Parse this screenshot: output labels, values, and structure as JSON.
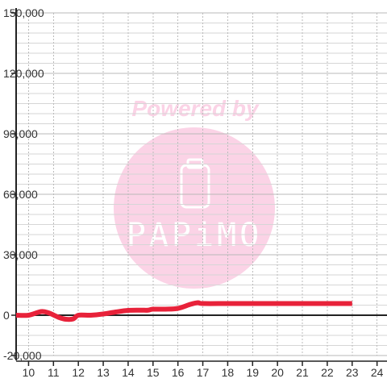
{
  "chart_data": {
    "type": "line",
    "title": "",
    "xlabel": "",
    "ylabel": "",
    "xlim": [
      9.5,
      24.4
    ],
    "ylim": [
      -20000,
      150000
    ],
    "x_ticks": [
      10,
      11,
      12,
      13,
      14,
      15,
      16,
      17,
      18,
      19,
      20,
      21,
      22,
      23,
      24
    ],
    "x_tick_labels": [
      "10",
      "11",
      "12",
      "13",
      "14",
      "15",
      "16",
      "17",
      "18",
      "19",
      "20",
      "21",
      "22",
      "23",
      "24"
    ],
    "y_ticks": [
      -20000,
      0,
      30000,
      60000,
      90000,
      120000,
      150000
    ],
    "y_tick_labels": [
      "-20,000",
      "0",
      "30,000",
      "60,000",
      "90,000",
      "120,000",
      "150,000"
    ],
    "grid": true,
    "series": [
      {
        "color": "#e8223a",
        "x": [
          9.5,
          10.0,
          10.5,
          10.8,
          11.2,
          11.5,
          11.8,
          12.0,
          12.5,
          13.0,
          13.5,
          14.0,
          14.5,
          14.8,
          15.0,
          15.5,
          16.0,
          16.5,
          16.8,
          17.0,
          18.0,
          19.0,
          20.0,
          21.0,
          22.0,
          23.0
        ],
        "y": [
          0,
          0,
          1800,
          1200,
          -1000,
          -2000,
          -1800,
          0,
          0,
          600,
          1600,
          2400,
          2500,
          2500,
          3000,
          3000,
          3400,
          5400,
          6200,
          5800,
          5800,
          5800,
          5800,
          5800,
          5800,
          5800
        ]
      }
    ]
  },
  "watermark": {
    "text": "Powered by",
    "brand": "PAPiMO",
    "color": "#f9cde3"
  }
}
